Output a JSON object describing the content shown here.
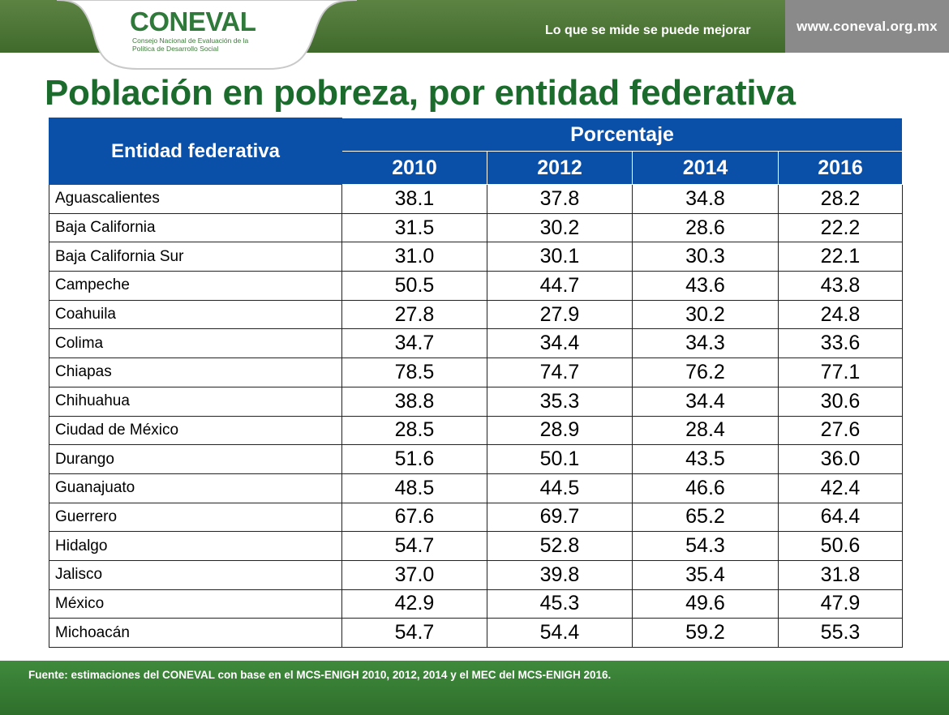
{
  "header": {
    "logo_text": "CONEVAL",
    "logo_subtitle": "Consejo Nacional de Evaluación de la Política de Desarrollo Social",
    "tagline": "Lo que se mide se puede mejorar",
    "url": "www.coneval.org.mx"
  },
  "title": "Población en pobreza, por entidad federativa",
  "table": {
    "entity_header": "Entidad federativa",
    "group_header": "Porcentaje",
    "years": [
      "2010",
      "2012",
      "2014",
      "2016"
    ],
    "rows": [
      {
        "name": "Aguascalientes",
        "values": [
          "38.1",
          "37.8",
          "34.8",
          "28.2"
        ]
      },
      {
        "name": "Baja California",
        "values": [
          "31.5",
          "30.2",
          "28.6",
          "22.2"
        ]
      },
      {
        "name": "Baja California Sur",
        "values": [
          "31.0",
          "30.1",
          "30.3",
          "22.1"
        ]
      },
      {
        "name": "Campeche",
        "values": [
          "50.5",
          "44.7",
          "43.6",
          "43.8"
        ]
      },
      {
        "name": "Coahuila",
        "values": [
          "27.8",
          "27.9",
          "30.2",
          "24.8"
        ]
      },
      {
        "name": "Colima",
        "values": [
          "34.7",
          "34.4",
          "34.3",
          "33.6"
        ]
      },
      {
        "name": "Chiapas",
        "values": [
          "78.5",
          "74.7",
          "76.2",
          "77.1"
        ]
      },
      {
        "name": "Chihuahua",
        "values": [
          "38.8",
          "35.3",
          "34.4",
          "30.6"
        ]
      },
      {
        "name": "Ciudad de México",
        "values": [
          "28.5",
          "28.9",
          "28.4",
          "27.6"
        ]
      },
      {
        "name": "Durango",
        "values": [
          "51.6",
          "50.1",
          "43.5",
          "36.0"
        ]
      },
      {
        "name": "Guanajuato",
        "values": [
          "48.5",
          "44.5",
          "46.6",
          "42.4"
        ]
      },
      {
        "name": "Guerrero",
        "values": [
          "67.6",
          "69.7",
          "65.2",
          "64.4"
        ]
      },
      {
        "name": "Hidalgo",
        "values": [
          "54.7",
          "52.8",
          "54.3",
          "50.6"
        ]
      },
      {
        "name": "Jalisco",
        "values": [
          "37.0",
          "39.8",
          "35.4",
          "31.8"
        ]
      },
      {
        "name": "México",
        "values": [
          "42.9",
          "45.3",
          "49.6",
          "47.9"
        ]
      },
      {
        "name": "Michoacán",
        "values": [
          "54.7",
          "54.4",
          "59.2",
          "55.3"
        ]
      }
    ]
  },
  "source": "Fuente: estimaciones del CONEVAL con base en el MCS-ENIGH 2010, 2012, 2014 y el MEC del MCS-ENIGH 2016.",
  "colors": {
    "header_green": "#4a7535",
    "title_green": "#1a6b2c",
    "table_header_blue": "#0a4fa8",
    "url_box_gray": "#8a8a8a"
  }
}
